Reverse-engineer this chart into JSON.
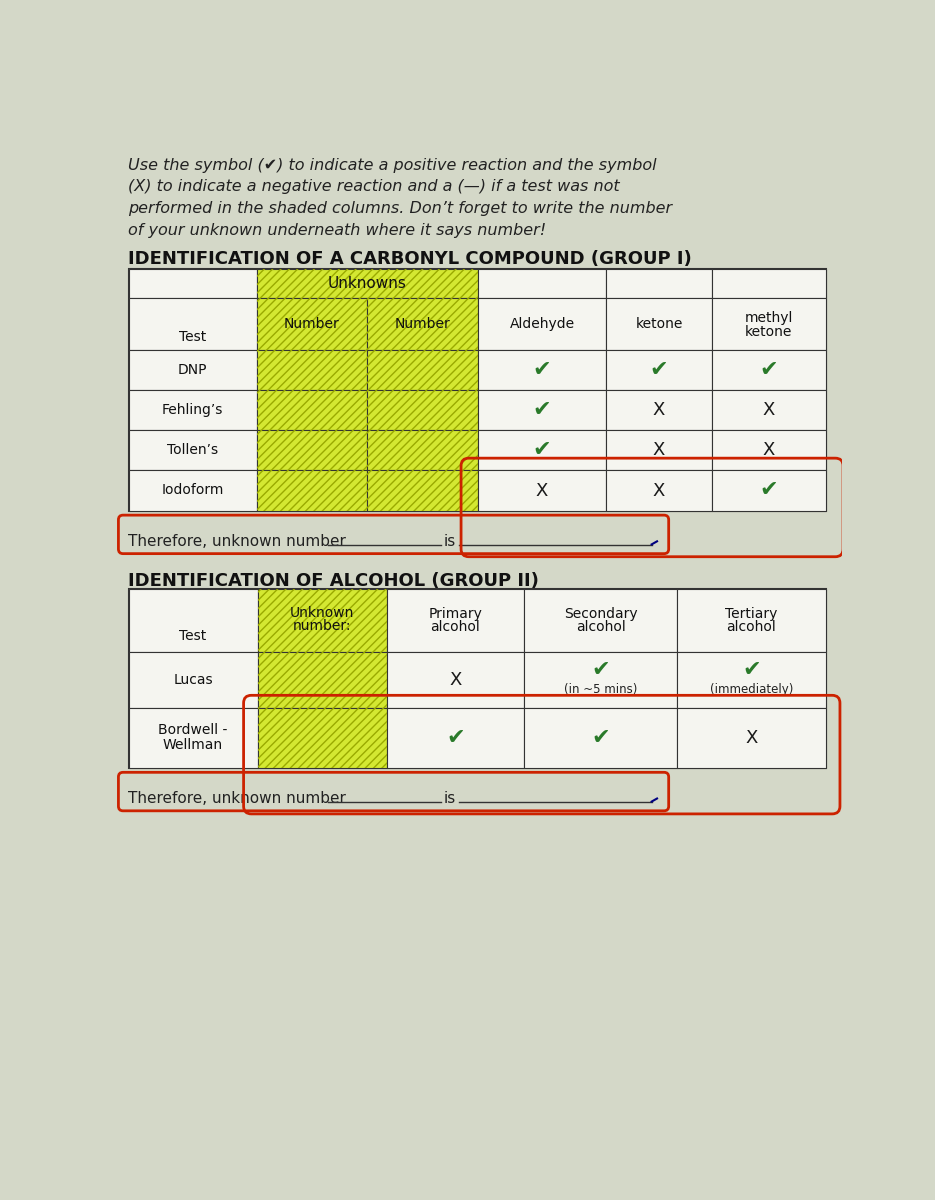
{
  "bg_color": "#d4d8c8",
  "header_text": "Use the symbol (✔) to indicate a positive reaction and the symbol\n(X) to indicate a negative reaction and a (—) if a test was not\nperformed in the shaded columns. Don’t forget to write the number\nof your unknown underneath where it says number!",
  "group1_title": "IDENTIFICATION OF A CARBONYL COMPOUND (GROUP I)",
  "group2_title": "IDENTIFICATION OF ALCOHOL (GROUP II)",
  "yellow_color": "#d4e832",
  "white_color": "#f5f5f0",
  "grid_color": "#333333",
  "text_color": "#222222",
  "check_color": "#2a7a2a",
  "x_color": "#1a1a1a",
  "title_color": "#111111",
  "red_oval_color": "#cc2200",
  "group1_tests": [
    "DNP",
    "Fehling’s",
    "Tollen’s",
    "Iodoform"
  ],
  "group1_data": [
    [
      "✔",
      "✔",
      "✔"
    ],
    [
      "✔",
      "X",
      "X"
    ],
    [
      "✔",
      "X",
      "X"
    ],
    [
      "X",
      "X",
      "✔"
    ]
  ],
  "group2_tests": [
    "Lucas",
    "Bordwell -\nWellman"
  ],
  "group2_data": [
    [
      "X",
      "✔",
      "✔"
    ],
    [
      "✔",
      "✔",
      "X"
    ]
  ],
  "lucas_sub": [
    "",
    "(in ~5 mins)",
    "(immediately)"
  ]
}
